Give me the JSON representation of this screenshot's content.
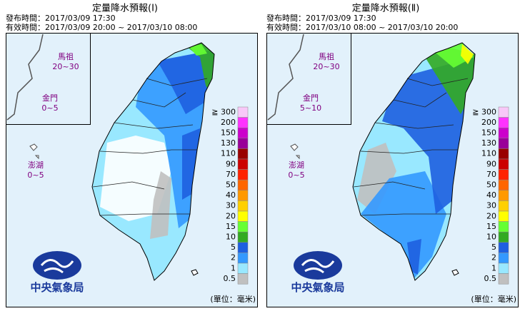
{
  "panels": [
    {
      "title": "定量降水預報(Ⅰ)",
      "issue_time": "發布時間：2017/03/09 17:30",
      "valid_time": "有效時間：2017/03/09 20:00 ~ 2017/03/10 08:00",
      "islands": [
        {
          "name": "馬祖",
          "range": "20~30"
        },
        {
          "name": "金門",
          "range": "0~5"
        },
        {
          "name": "澎湖",
          "range": "0~5"
        }
      ],
      "agency": "中央氣象局"
    },
    {
      "title": "定量降水預報(Ⅱ)",
      "issue_time": "發布時間：2017/03/09 17:30",
      "valid_time": "有效時間：2017/03/10 08:00 ~ 2017/03/10 20:00",
      "islands": [
        {
          "name": "馬祖",
          "range": "20~30"
        },
        {
          "name": "金門",
          "range": "5~10"
        },
        {
          "name": "澎湖",
          "range": "0~5"
        }
      ],
      "agency": "中央氣象局"
    }
  ],
  "legend": {
    "unit": "(單位：毫米)",
    "items": [
      {
        "label": "≧ 300",
        "color": "#f8c8f8"
      },
      {
        "label": "200",
        "color": "#ff33ff"
      },
      {
        "label": "150",
        "color": "#cc00cc"
      },
      {
        "label": "130",
        "color": "#990099"
      },
      {
        "label": "110",
        "color": "#990000"
      },
      {
        "label": "90",
        "color": "#cc0000"
      },
      {
        "label": "70",
        "color": "#ff2200"
      },
      {
        "label": "50",
        "color": "#ff6600"
      },
      {
        "label": "40",
        "color": "#ff9900"
      },
      {
        "label": "30",
        "color": "#ffd000"
      },
      {
        "label": "20",
        "color": "#ffff00"
      },
      {
        "label": "15",
        "color": "#66ff33"
      },
      {
        "label": "10",
        "color": "#33aa22"
      },
      {
        "label": "5",
        "color": "#1e5fe0"
      },
      {
        "label": "2",
        "color": "#3399ff"
      },
      {
        "label": "1",
        "color": "#99e8ff"
      },
      {
        "label": "0.5",
        "color": "#c0c0c0"
      }
    ]
  }
}
